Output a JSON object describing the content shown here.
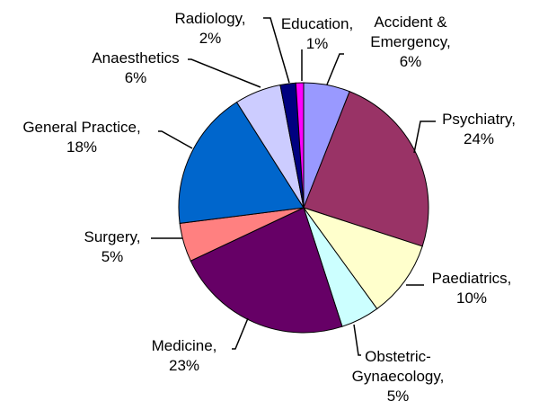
{
  "chart_data": {
    "type": "pie",
    "title": "",
    "slices": [
      {
        "name": "Accident & Emergency",
        "value": 6,
        "value_label": "6%",
        "color": "#9999FF"
      },
      {
        "name": "Psychiatry",
        "value": 24,
        "value_label": "24%",
        "color": "#993366"
      },
      {
        "name": "Paediatrics",
        "value": 10,
        "value_label": "10%",
        "color": "#FFFFCC"
      },
      {
        "name": "Obstetric-Gynaecology",
        "value": 5,
        "value_label": "5%",
        "color": "#CCFFFF"
      },
      {
        "name": "Medicine",
        "value": 23,
        "value_label": "23%",
        "color": "#660066"
      },
      {
        "name": "Surgery",
        "value": 5,
        "value_label": "5%",
        "color": "#FF8080"
      },
      {
        "name": "General Practice",
        "value": 18,
        "value_label": "18%",
        "color": "#0066CC"
      },
      {
        "name": "Anaesthetics",
        "value": 6,
        "value_label": "6%",
        "color": "#CCCCFF"
      },
      {
        "name": "Radiology",
        "value": 2,
        "value_label": "2%",
        "color": "#000080"
      },
      {
        "name": "Education",
        "value": 1,
        "value_label": "1%",
        "color": "#FF00FF"
      }
    ],
    "labels": [
      {
        "lines": [
          "Accident &",
          "Emergency,",
          "6%"
        ]
      },
      {
        "lines": [
          "Psychiatry,",
          "24%"
        ]
      },
      {
        "lines": [
          "Paediatrics,",
          "10%"
        ]
      },
      {
        "lines": [
          "Obstetric-",
          "Gynaecology,",
          "5%"
        ]
      },
      {
        "lines": [
          "Medicine,",
          "23%"
        ]
      },
      {
        "lines": [
          "Surgery,",
          "5%"
        ]
      },
      {
        "lines": [
          "General Practice,",
          "18%"
        ]
      },
      {
        "lines": [
          "Anaesthetics",
          "6%"
        ]
      },
      {
        "lines": [
          "Radiology,",
          "2%"
        ]
      },
      {
        "lines": [
          "Education,",
          "1%"
        ]
      }
    ],
    "legend": "none"
  }
}
